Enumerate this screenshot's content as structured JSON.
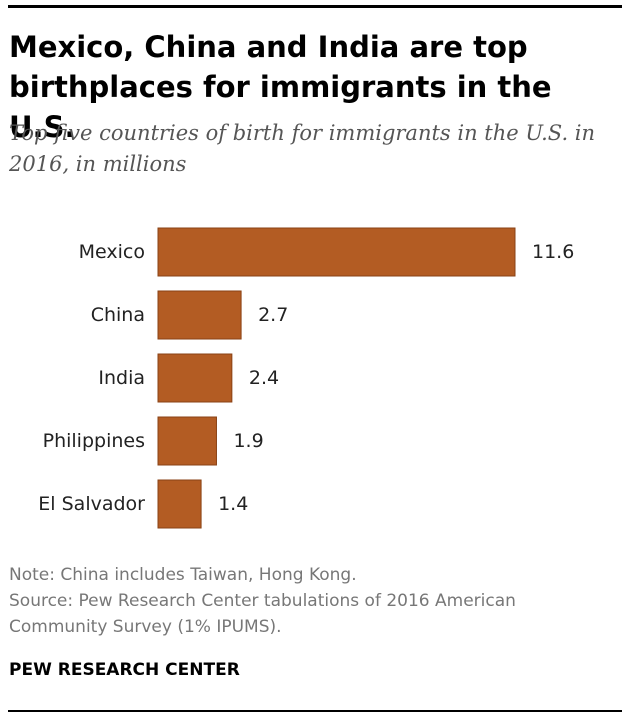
{
  "title": "Mexico, China and India are top birthplaces for immigrants in the U.S.",
  "subtitle": "Top five countries of birth for immigrants in the U.S. in 2016, in millions",
  "note": "Note: China includes Taiwan, Hong Kong.",
  "source": "Source: Pew Research Center tabulations of 2016 American Community Survey (1% IPUMS).",
  "brand": "PEW RESEARCH CENTER",
  "colors": {
    "bar": "#b35c23",
    "bar_stroke": "#8a4214"
  },
  "chart_data": {
    "type": "bar",
    "orientation": "horizontal",
    "categories": [
      "Mexico",
      "China",
      "India",
      "Philippines",
      "El Salvador"
    ],
    "values": [
      11.6,
      2.7,
      2.4,
      1.9,
      1.4
    ],
    "data_labels": [
      "11.6",
      "2.7",
      "2.4",
      "1.9",
      "1.4"
    ],
    "xlim": [
      0,
      11.6
    ],
    "grid": false,
    "legend": "none"
  }
}
